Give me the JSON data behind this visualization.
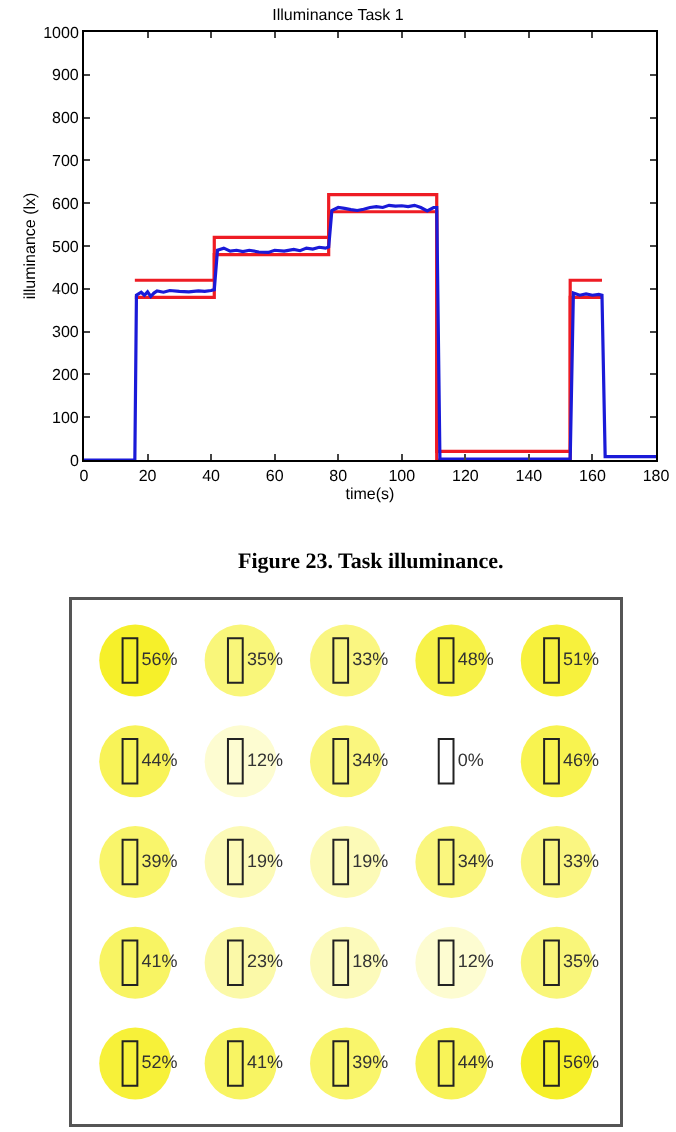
{
  "chart_data": [
    {
      "type": "line",
      "title": "Illuminance Task 1",
      "xlabel": "time(s)",
      "ylabel": "illuminance (lx)",
      "xlim": [
        0,
        180
      ],
      "ylim": [
        0,
        1000
      ],
      "xticks": [
        0,
        20,
        40,
        60,
        80,
        100,
        120,
        140,
        160,
        180
      ],
      "yticks": [
        0,
        100,
        200,
        300,
        400,
        500,
        600,
        700,
        800,
        900,
        1000
      ],
      "grid": false,
      "marker": "none",
      "line_style": "solid",
      "annotations": [
        "Figure 23. Task illuminance."
      ],
      "series": [
        {
          "color": "#ee1c24",
          "x": [
            16,
            41,
            41,
            77,
            77,
            111,
            111,
            153,
            153,
            163
          ],
          "values": [
            420,
            420,
            520,
            520,
            620,
            620,
            20,
            20,
            420,
            420
          ]
        },
        {
          "color": "#ee1c24",
          "x": [
            16,
            41,
            41,
            77,
            77,
            111,
            111,
            153,
            153,
            163
          ],
          "values": [
            380,
            380,
            480,
            480,
            580,
            580,
            0,
            0,
            380,
            380
          ]
        },
        {
          "color": "#1a1ad8",
          "x": [
            0,
            16,
            16.5,
            18,
            19,
            20,
            21,
            22,
            23,
            25,
            27,
            30,
            33,
            36,
            38,
            40,
            41,
            42,
            44,
            46,
            48,
            50,
            52,
            55,
            58,
            60,
            63,
            66,
            68,
            70,
            72,
            74,
            76,
            77,
            78,
            80,
            82,
            84,
            86,
            88,
            90,
            92,
            94,
            96,
            98,
            100,
            102,
            104,
            106,
            108,
            110,
            111,
            112,
            130,
            153,
            154,
            156,
            158,
            160,
            162,
            163,
            164,
            180
          ],
          "values": [
            0,
            0,
            385,
            392,
            385,
            393,
            382,
            390,
            395,
            392,
            396,
            394,
            393,
            395,
            394,
            396,
            398,
            490,
            495,
            488,
            490,
            487,
            490,
            486,
            485,
            490,
            488,
            492,
            489,
            495,
            493,
            497,
            495,
            498,
            583,
            590,
            588,
            585,
            583,
            586,
            590,
            592,
            590,
            595,
            593,
            594,
            592,
            595,
            590,
            582,
            590,
            590,
            2,
            2,
            2,
            390,
            385,
            388,
            385,
            387,
            385,
            8,
            8
          ]
        }
      ]
    },
    {
      "type": "other",
      "values": [
        56,
        35,
        33,
        48,
        51,
        44,
        12,
        34,
        0,
        46,
        39,
        19,
        19,
        34,
        33,
        41,
        23,
        18,
        12,
        35,
        52,
        41,
        39,
        44,
        56
      ],
      "value_labels": [
        "56%",
        "35%",
        "33%",
        "48%",
        "51%",
        "44%",
        "12%",
        "34%",
        "0%",
        "46%",
        "39%",
        "19%",
        "19%",
        "34%",
        "33%",
        "41%",
        "23%",
        "18%",
        "12%",
        "35%",
        "52%",
        "41%",
        "39%",
        "44%",
        "56%"
      ]
    }
  ]
}
